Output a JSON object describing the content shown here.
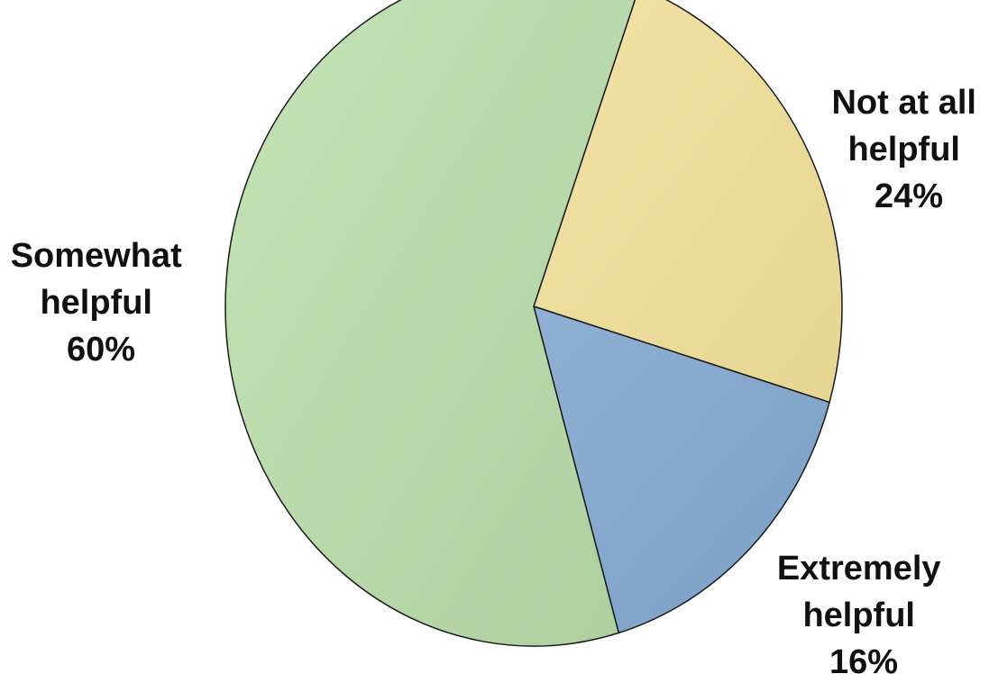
{
  "chart_data": {
    "type": "pie",
    "title": "",
    "legend": "none",
    "slices": [
      {
        "label_lines": [
          "Not at all",
          "helpful"
        ],
        "value": 24,
        "value_label": "24%",
        "color_top": "#f2e3a6",
        "color_bottom": "#e6d592"
      },
      {
        "label_lines": [
          "Extremely",
          "helpful"
        ],
        "value": 16,
        "value_label": "16%",
        "color_top": "#8eb0d2",
        "color_bottom": "#7ba0c6"
      },
      {
        "label_lines": [
          "Somewhat",
          "helpful"
        ],
        "value": 60,
        "value_label": "60%",
        "color_top": "#c4e4b7",
        "color_bottom": "#aecfa0"
      }
    ]
  }
}
